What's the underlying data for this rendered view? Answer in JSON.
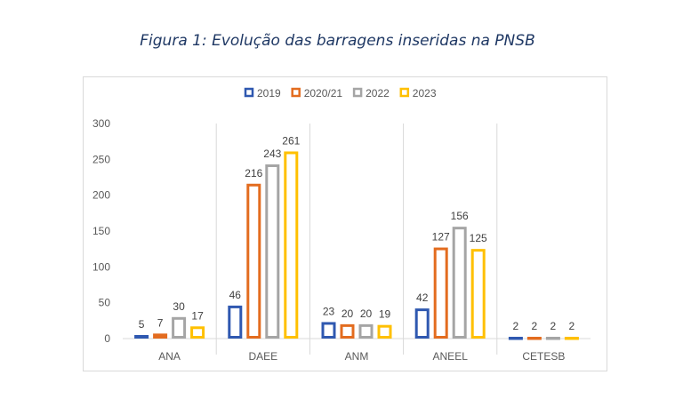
{
  "title": "Figura 1: Evolução das barragens inseridas na PNSB",
  "chart_data": {
    "type": "bar",
    "categories": [
      "ANA",
      "DAEE",
      "ANM",
      "ANEEL",
      "CETESB"
    ],
    "series": [
      {
        "name": "2019",
        "color": "#2f58b0",
        "values": [
          5,
          46,
          23,
          42,
          2
        ]
      },
      {
        "name": "2020/21",
        "color": "#e36c1f",
        "values": [
          7,
          216,
          20,
          127,
          2
        ]
      },
      {
        "name": "2022",
        "color": "#a5a5a5",
        "values": [
          30,
          243,
          20,
          156,
          2
        ]
      },
      {
        "name": "2023",
        "color": "#ffc000",
        "values": [
          17,
          261,
          19,
          125,
          2
        ]
      }
    ],
    "yticks": [
      0,
      50,
      100,
      150,
      200,
      250,
      300
    ],
    "ylim": [
      0,
      300
    ],
    "legend": "top",
    "grid": "vertical category separators",
    "bar_style": "outlined",
    "xlabel": "",
    "ylabel": ""
  }
}
